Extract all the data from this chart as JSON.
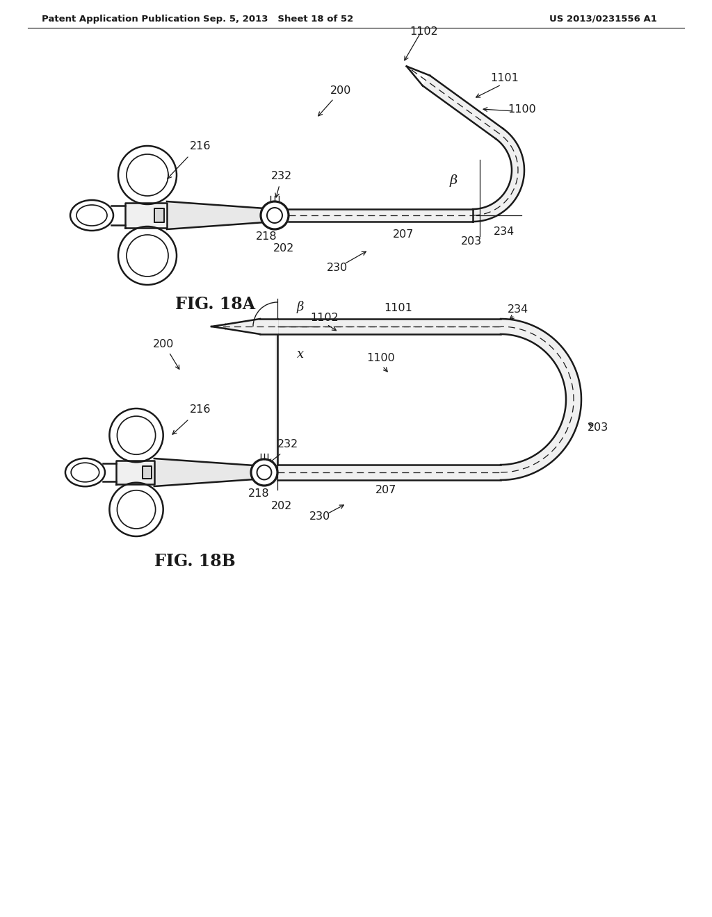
{
  "background_color": "#ffffff",
  "header_left": "Patent Application Publication",
  "header_middle": "Sep. 5, 2013   Sheet 18 of 52",
  "header_right": "US 2013/0231556 A1",
  "fig_label_a": "FIG. 18A",
  "fig_label_b": "FIG. 18B",
  "line_color": "#1a1a1a",
  "line_width": 1.8
}
